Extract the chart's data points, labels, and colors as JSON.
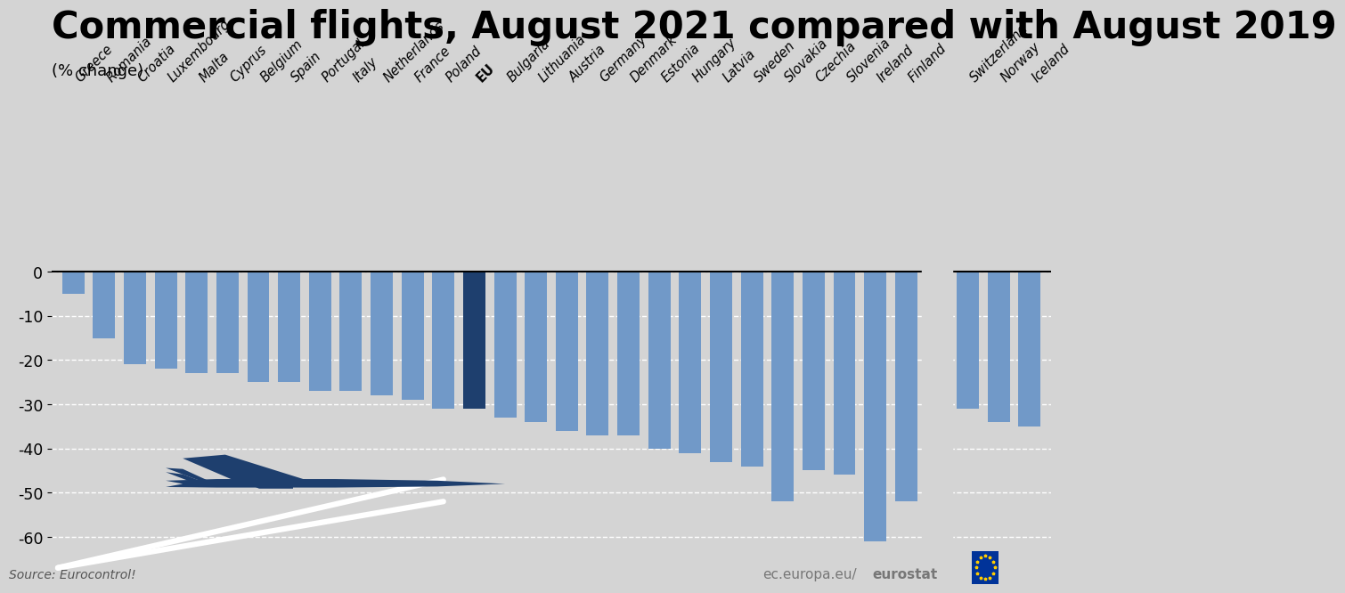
{
  "categories": [
    "Greece",
    "Romania",
    "Croatia",
    "Luxembourg",
    "Malta",
    "Cyprus",
    "Belgium",
    "Spain",
    "Portugal",
    "Italy",
    "Netherlands",
    "France",
    "Poland",
    "EU",
    "Bulgaria",
    "Lithuania",
    "Austria",
    "Germany",
    "Denmark",
    "Estonia",
    "Hungary",
    "Latvia",
    "Sweden",
    "Slovakia",
    "Czechia",
    "Slovenia",
    "Ireland",
    "Finland",
    "",
    "Switzerland",
    "Norway",
    "Iceland"
  ],
  "values": [
    -5,
    -15,
    -21,
    -22,
    -23,
    -23,
    -25,
    -25,
    -27,
    -27,
    -28,
    -29,
    -31,
    -31,
    -33,
    -34,
    -36,
    -37,
    -37,
    -40,
    -41,
    -43,
    -44,
    -52,
    -45,
    -46,
    -61,
    -52,
    null,
    -31,
    -34,
    -35
  ],
  "eu_color": "#1e3f6e",
  "bar_color": "#7199c8",
  "bg_color": "#d4d4d4",
  "title": "Commercial flights, August 2021 compared with August 2019",
  "subtitle": "(% change)",
  "source_text": "Source: Eurocontrol!",
  "ylim_min": -70,
  "ylim_max": 5,
  "yticks": [
    0,
    -10,
    -20,
    -30,
    -40,
    -50,
    -60
  ],
  "title_fontsize": 30,
  "axis_fontsize": 12.5,
  "tick_label_fontsize": 10.5
}
